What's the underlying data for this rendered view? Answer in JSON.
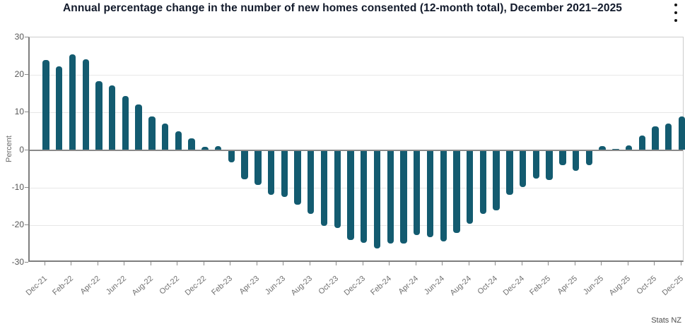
{
  "header": {
    "title": "Annual percentage change in the number of new homes consented (12-month total), December 2021–2025",
    "menu_icon": "kebab-menu-icon"
  },
  "chart_data": {
    "type": "bar",
    "title": "Annual percentage change in the number of new homes consented (12-month total), December 2021–2025",
    "xlabel": "",
    "ylabel": "Percent",
    "ylim": [
      -30,
      30
    ],
    "y_ticks": [
      30,
      20,
      10,
      0,
      -10,
      -20,
      -30
    ],
    "grid": "horizontal",
    "legend": "none",
    "bar_color": "#135B70",
    "x_tick_labels": [
      "Dec-21",
      "Feb-22",
      "Apr-22",
      "Jun-22",
      "Aug-22",
      "Oct-22",
      "Dec-22",
      "Feb-23",
      "Apr-23",
      "Jun-23",
      "Aug-23",
      "Oct-23",
      "Dec-23",
      "Feb-24",
      "Apr-24",
      "Jun-24",
      "Aug-24",
      "Oct-24",
      "Dec-24",
      "Feb-25",
      "Apr-25",
      "Jun-25",
      "Aug-25",
      "Oct-25",
      "Dec-25"
    ],
    "categories": [
      "Dec-21",
      "Jan-22",
      "Feb-22",
      "Mar-22",
      "Apr-22",
      "May-22",
      "Jun-22",
      "Jul-22",
      "Aug-22",
      "Sep-22",
      "Oct-22",
      "Nov-22",
      "Dec-22",
      "Jan-23",
      "Feb-23",
      "Mar-23",
      "Apr-23",
      "May-23",
      "Jun-23",
      "Jul-23",
      "Aug-23",
      "Sep-23",
      "Oct-23",
      "Nov-23",
      "Dec-23",
      "Jan-24",
      "Feb-24",
      "Mar-24",
      "Apr-24",
      "May-24",
      "Jun-24",
      "Jul-24",
      "Aug-24",
      "Sep-24",
      "Oct-24",
      "Nov-24",
      "Dec-24",
      "Jan-25",
      "Feb-25",
      "Mar-25",
      "Apr-25",
      "May-25",
      "Jun-25",
      "Jul-25",
      "Aug-25",
      "Sep-25",
      "Oct-25",
      "Nov-25",
      "Dec-25"
    ],
    "values": [
      24.0,
      22.3,
      25.5,
      24.2,
      18.3,
      17.2,
      14.4,
      12.1,
      8.9,
      7.0,
      5.0,
      3.1,
      0.9,
      1.1,
      -3.1,
      -7.7,
      -9.2,
      -11.7,
      -12.4,
      -14.3,
      -16.9,
      -20.1,
      -20.6,
      -23.7,
      -24.6,
      -26.1,
      -24.8,
      -24.7,
      -22.4,
      -23.1,
      -24.1,
      -21.9,
      -19.5,
      -16.9,
      -15.9,
      -11.8,
      -9.6,
      -7.4,
      -7.8,
      -3.9,
      -5.4,
      -3.9,
      1.0,
      0.2,
      1.3,
      3.8,
      6.3,
      7.1,
      9.0
    ]
  },
  "footer": {
    "source": "Stats NZ"
  }
}
